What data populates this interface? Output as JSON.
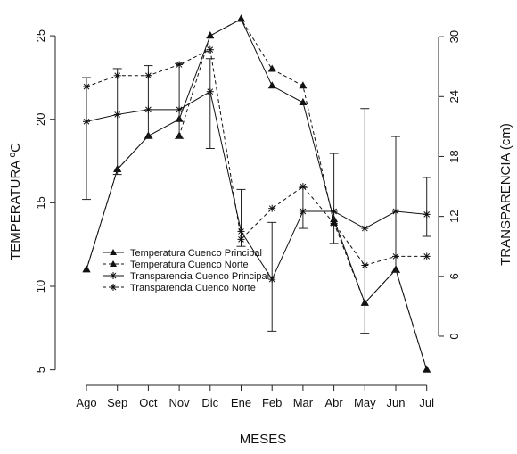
{
  "chart_data": {
    "type": "line",
    "xlabel": "MESES",
    "ylabel_left": "TEMPERATURA ºC",
    "ylabel_right": "TRANSPARENCIA (cm)",
    "categories": [
      "Ago",
      "Sep",
      "Oct",
      "Nov",
      "Dic",
      "Ene",
      "Feb",
      "Mar",
      "Abr",
      "May",
      "Jun",
      "Jul"
    ],
    "ylim_left": [
      4.5,
      26.5
    ],
    "yticks_left": [
      5,
      10,
      15,
      20,
      25
    ],
    "ylim_right": [
      -4.2,
      32.6
    ],
    "yticks_right": [
      0,
      6,
      12,
      18,
      24,
      30
    ],
    "grid": false,
    "legend_position": "lower-left",
    "series": [
      {
        "name": "Temperatura Cuenco Principal",
        "axis": "left",
        "marker": "triangle",
        "line": "solid",
        "values": [
          11,
          17,
          19,
          20,
          25,
          26,
          22,
          21,
          14,
          9,
          11,
          5
        ]
      },
      {
        "name": "Temperatura Cuenco Norte",
        "axis": "left",
        "marker": "triangle",
        "line": "dashed",
        "values": [
          11,
          17,
          19,
          19,
          25,
          26,
          23,
          22,
          13.8,
          9,
          11,
          5
        ]
      },
      {
        "name": "Transparencia Cuenco Principal",
        "axis": "right",
        "marker": "star",
        "line": "solid",
        "values": [
          21.5,
          22.2,
          22.7,
          22.7,
          24.5,
          10.5,
          5.7,
          12.5,
          12.5,
          10.8,
          12.5,
          12.2
        ],
        "error_low": [
          13.7,
          16.2,
          19.8,
          19.8,
          18.8,
          9.0,
          0.5,
          10.8,
          9.3,
          0.3,
          6.4,
          10.0
        ],
        "error_high": [
          25.9,
          26.8,
          27.1,
          27.3,
          27.8,
          14.7,
          11.4,
          14.9,
          18.3,
          22.8,
          20.0,
          15.9
        ]
      },
      {
        "name": "Transparencia Cuenco Norte",
        "axis": "right",
        "marker": "star",
        "line": "dashed",
        "values": [
          25.0,
          26.1,
          26.1,
          27.2,
          28.7,
          9.7,
          12.8,
          15.0,
          11.3,
          7.1,
          8.0,
          8.0
        ],
        "error_low": [],
        "error_high": []
      }
    ]
  }
}
